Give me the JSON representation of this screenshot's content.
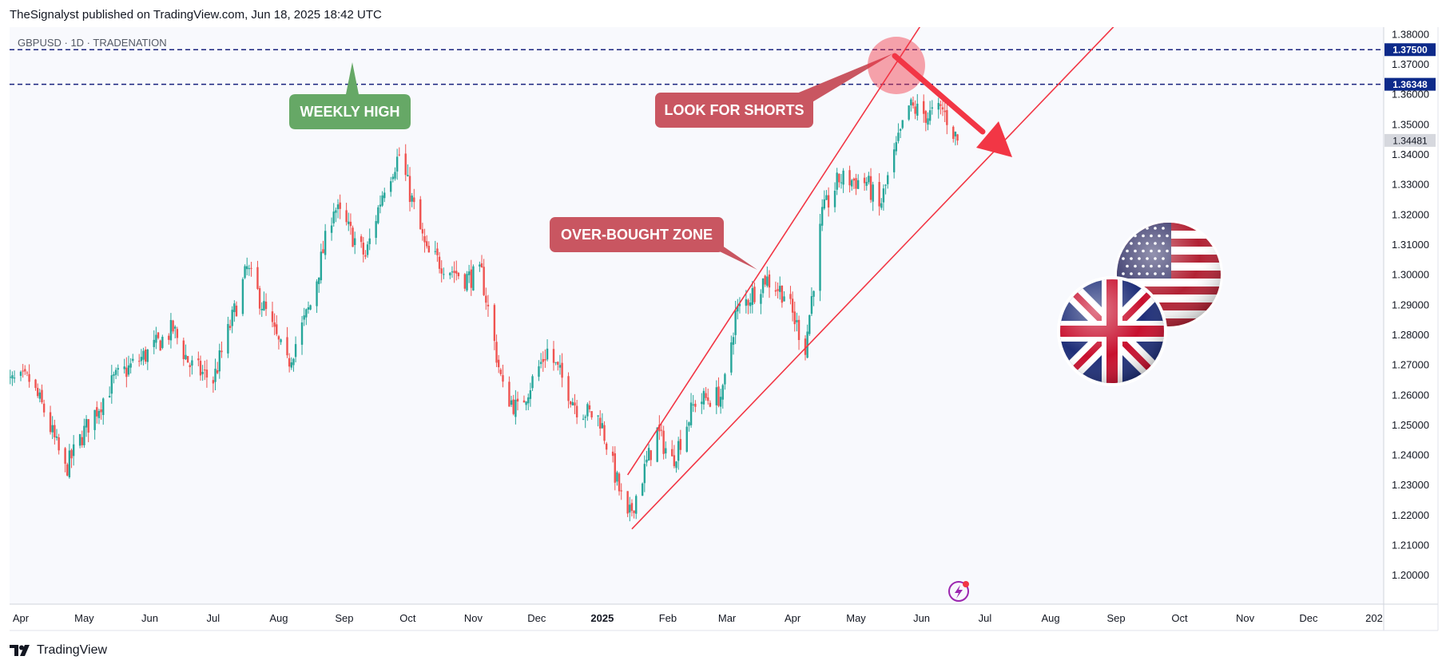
{
  "header": {
    "published": "TheSignalyst published on TradingView.com, Jun 18, 2025 18:42 UTC",
    "symbol": "GBPUSD · 1D · TRADENATION"
  },
  "footer": {
    "brand": "TradingView",
    "logo_icon": "tradingview-logo-icon"
  },
  "colors": {
    "up": "#26a69a",
    "down": "#ef5350",
    "level": "#1a237e",
    "grid_bg": "#f8f9fd",
    "trend": "#f23645",
    "weekly_high": "#66a866",
    "shorts": "#c95661",
    "overbought": "#c95661",
    "price_badge": "#0d2a8a",
    "last_badge": "#d6d8de"
  },
  "annotations": {
    "weekly_high": "WEEKLY HIGH",
    "look_for_shorts": "LOOK FOR SHORTS",
    "overbought": "OVER-BOUGHT ZONE"
  },
  "icons": [
    "us-flag-icon",
    "uk-flag-icon",
    "lightning-icon",
    "arrow-down-right-icon"
  ],
  "chart_data": {
    "type": "candlestick",
    "symbol": "GBPUSD",
    "interval": "1D",
    "ylim": [
      1.195,
      1.3825
    ],
    "y_ticks": [
      "1.38000",
      "1.37000",
      "1.36000",
      "1.35000",
      "1.34000",
      "1.33000",
      "1.32000",
      "1.31000",
      "1.30000",
      "1.29000",
      "1.28000",
      "1.27000",
      "1.26000",
      "1.25000",
      "1.24000",
      "1.23000",
      "1.22000",
      "1.21000",
      "1.20000"
    ],
    "x_ticks": [
      {
        "label": "Apr",
        "bold": false
      },
      {
        "label": "May",
        "bold": false
      },
      {
        "label": "Jun",
        "bold": false
      },
      {
        "label": "Jul",
        "bold": false
      },
      {
        "label": "Aug",
        "bold": false
      },
      {
        "label": "Sep",
        "bold": false
      },
      {
        "label": "Oct",
        "bold": false
      },
      {
        "label": "Nov",
        "bold": false
      },
      {
        "label": "Dec",
        "bold": false
      },
      {
        "label": "2025",
        "bold": true
      },
      {
        "label": "Feb",
        "bold": false
      },
      {
        "label": "Mar",
        "bold": false
      },
      {
        "label": "Apr",
        "bold": false
      },
      {
        "label": "May",
        "bold": false
      },
      {
        "label": "Jun",
        "bold": false
      },
      {
        "label": "Jul",
        "bold": false
      },
      {
        "label": "Aug",
        "bold": false
      },
      {
        "label": "Sep",
        "bold": false
      },
      {
        "label": "Oct",
        "bold": false
      },
      {
        "label": "Nov",
        "bold": false
      },
      {
        "label": "Dec",
        "bold": false
      },
      {
        "label": "202",
        "bold": false
      }
    ],
    "levels": [
      {
        "value": 1.375,
        "label": "1.37500",
        "style": "dashed"
      },
      {
        "value": 1.36348,
        "label": "1.36348",
        "style": "dashed"
      }
    ],
    "last_price": {
      "value": 1.34481,
      "label": "1.34481"
    },
    "trendlines": [
      {
        "name": "channel-upper",
        "from": [
          "2025-01-13",
          1.2335
        ],
        "to": [
          "2025-06-01",
          1.3835
        ]
      },
      {
        "name": "channel-lower",
        "from": [
          "2025-01-15",
          1.2155
        ],
        "to": [
          "2025-09-01",
          1.3835
        ]
      }
    ],
    "close_path": [
      [
        "2024-03-25",
        1.264
      ],
      [
        "2024-04-05",
        1.265
      ],
      [
        "2024-04-12",
        1.255
      ],
      [
        "2024-04-22",
        1.235
      ],
      [
        "2024-05-01",
        1.248
      ],
      [
        "2024-05-15",
        1.265
      ],
      [
        "2024-05-31",
        1.274
      ],
      [
        "2024-06-12",
        1.282
      ],
      [
        "2024-06-20",
        1.27
      ],
      [
        "2024-07-01",
        1.265
      ],
      [
        "2024-07-12",
        1.29
      ],
      [
        "2024-07-17",
        1.302
      ],
      [
        "2024-07-25",
        1.289
      ],
      [
        "2024-08-05",
        1.27
      ],
      [
        "2024-08-16",
        1.29
      ],
      [
        "2024-08-27",
        1.323
      ],
      [
        "2024-09-11",
        1.306
      ],
      [
        "2024-09-20",
        1.33
      ],
      [
        "2024-09-27",
        1.34
      ],
      [
        "2024-10-10",
        1.307
      ],
      [
        "2024-10-28",
        1.299
      ],
      [
        "2024-11-05",
        1.3
      ],
      [
        "2024-11-15",
        1.262
      ],
      [
        "2024-11-22",
        1.255
      ],
      [
        "2024-12-06",
        1.275
      ],
      [
        "2024-12-20",
        1.256
      ],
      [
        "2024-12-31",
        1.252
      ],
      [
        "2025-01-13",
        1.218
      ],
      [
        "2025-01-27",
        1.248
      ],
      [
        "2025-02-03",
        1.238
      ],
      [
        "2025-02-14",
        1.258
      ],
      [
        "2025-02-27",
        1.26
      ],
      [
        "2025-03-05",
        1.287
      ],
      [
        "2025-03-19",
        1.299
      ],
      [
        "2025-03-28",
        1.294
      ],
      [
        "2025-04-07",
        1.276
      ],
      [
        "2025-04-15",
        1.32
      ],
      [
        "2025-04-23",
        1.332
      ],
      [
        "2025-05-06",
        1.331
      ],
      [
        "2025-05-12",
        1.322
      ],
      [
        "2025-05-20",
        1.342
      ],
      [
        "2025-05-26",
        1.356
      ],
      [
        "2025-06-04",
        1.353
      ],
      [
        "2025-06-11",
        1.355
      ],
      [
        "2025-06-18",
        1.3448
      ]
    ]
  }
}
